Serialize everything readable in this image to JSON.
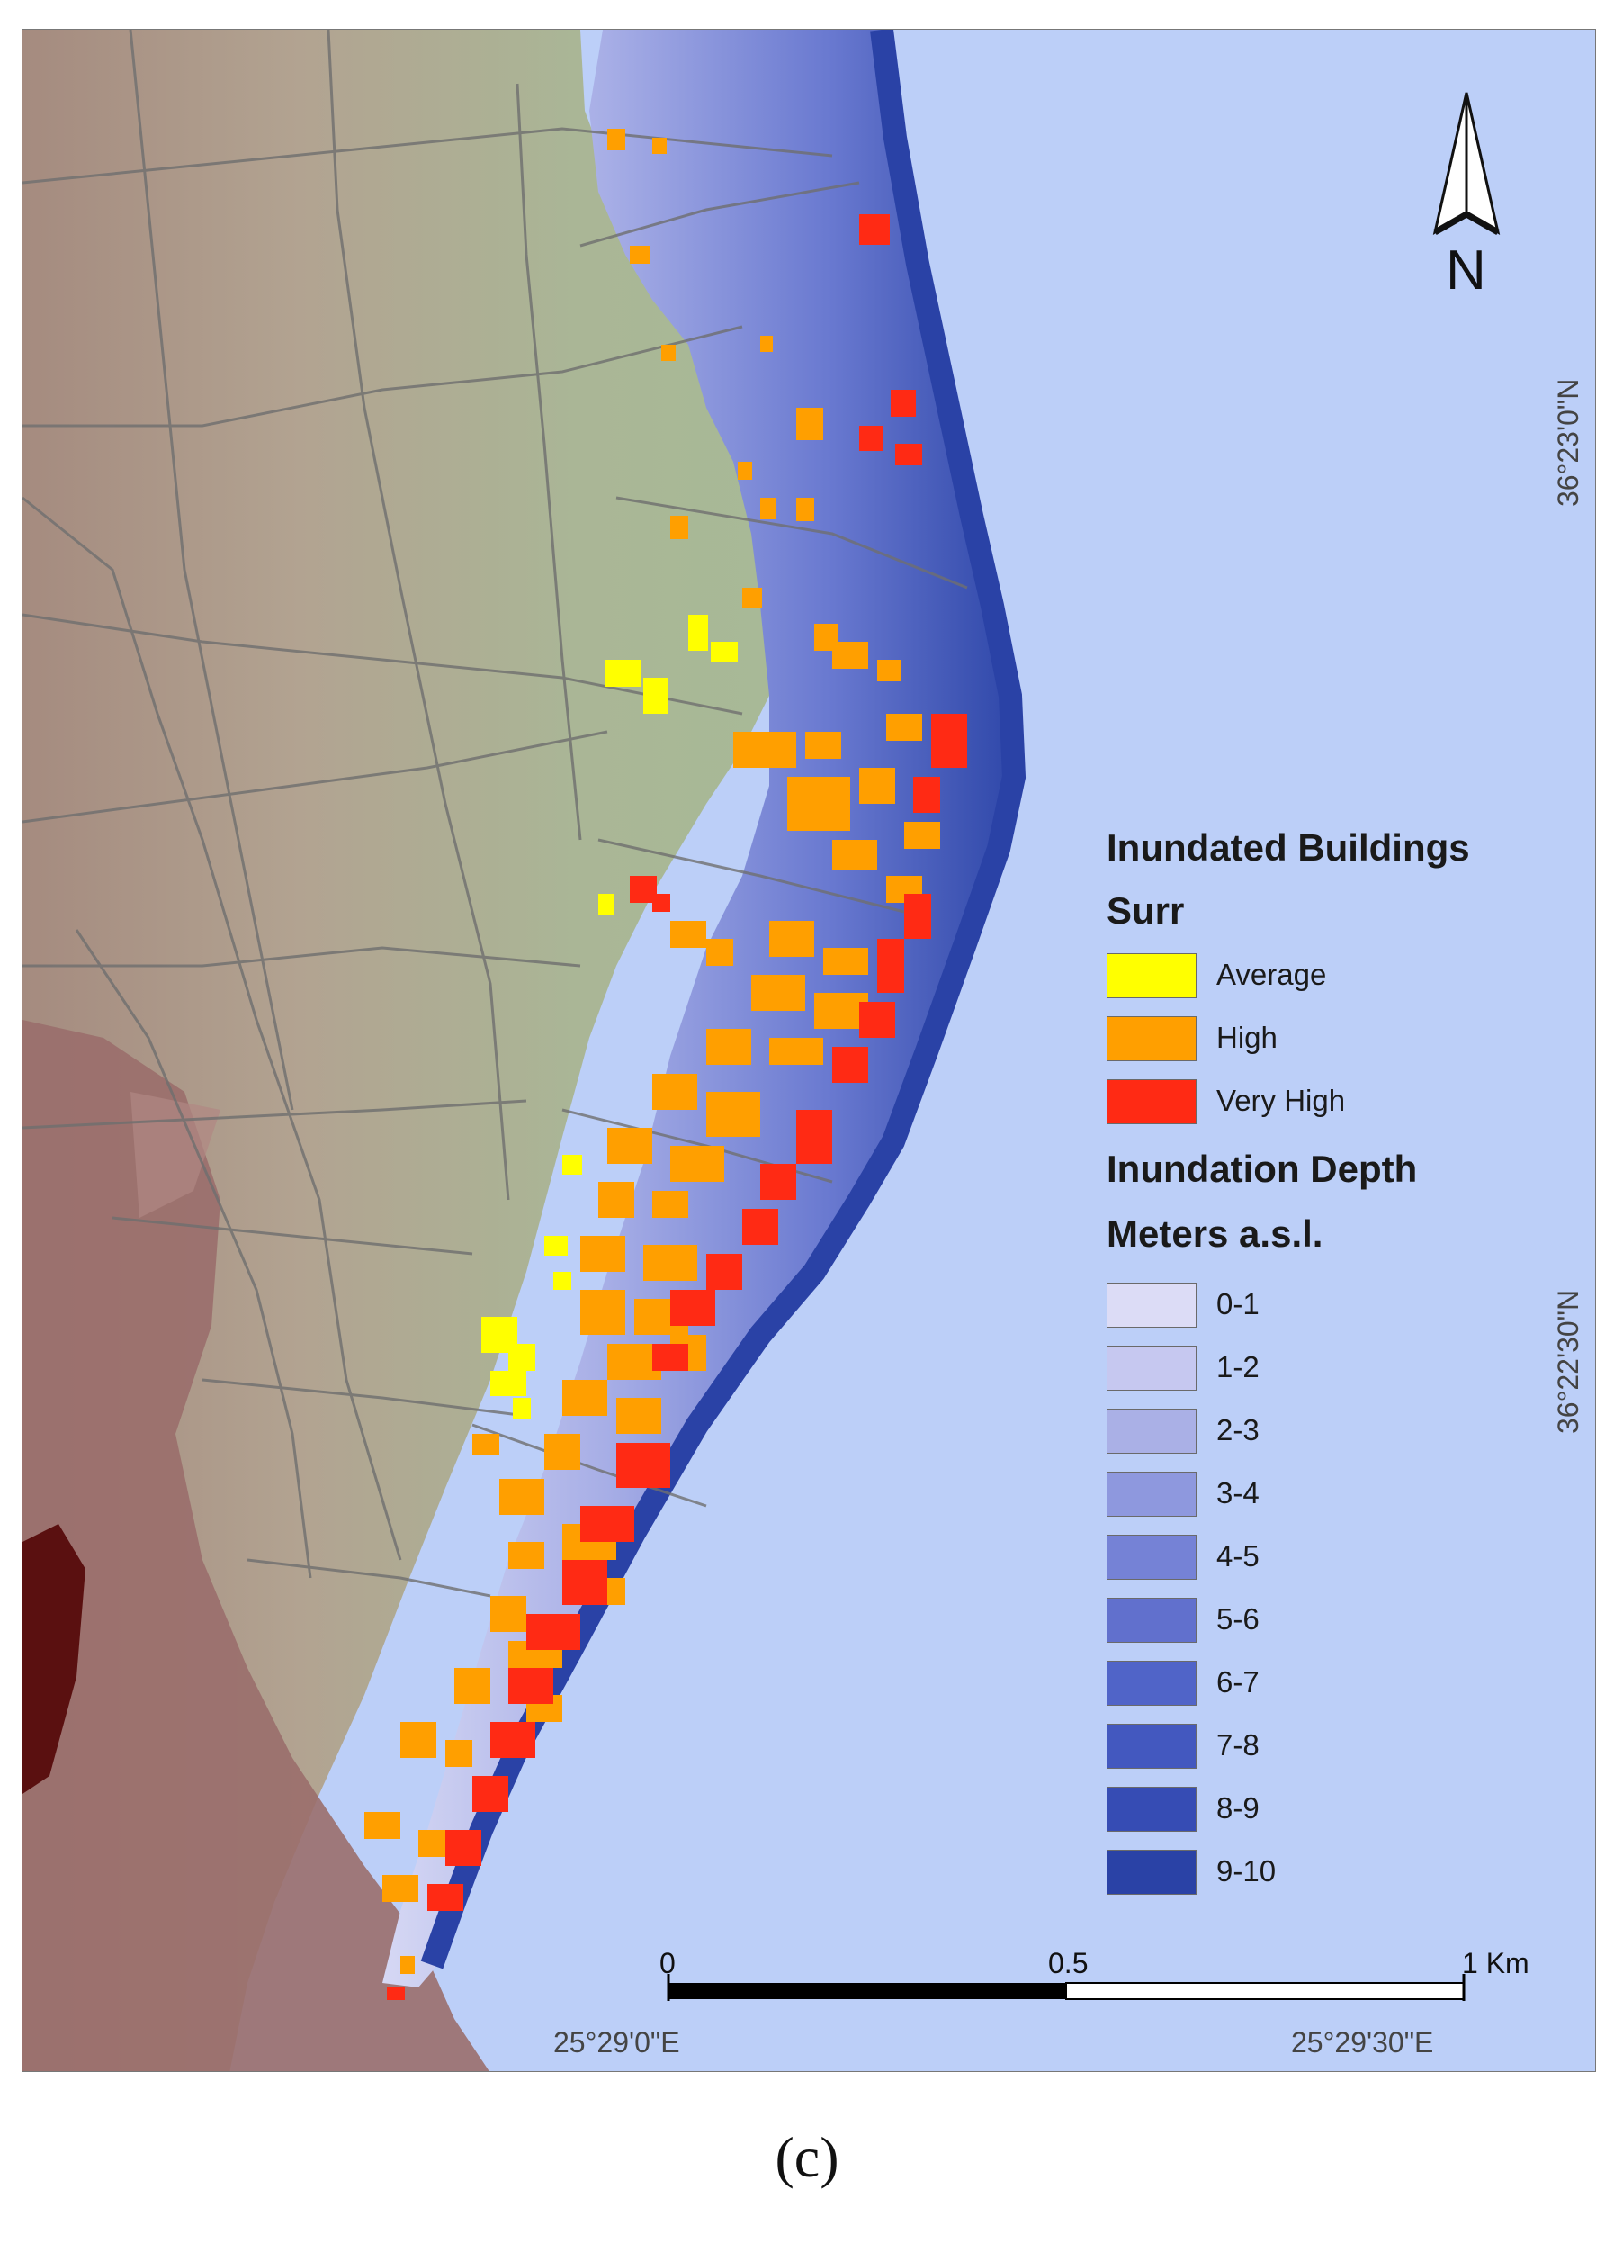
{
  "legend": {
    "title": "Inundated Buildings",
    "subtitle": "Surr",
    "building_classes": [
      {
        "label": "Average",
        "color": "#ffff00"
      },
      {
        "label": "High",
        "color": "#ff9f00"
      },
      {
        "label": "Very High",
        "color": "#ff2a14"
      }
    ],
    "depth_title": "Inundation Depth",
    "depth_units": "Meters a.s.l.",
    "depth_classes": [
      {
        "label": "0-1",
        "color": "#dcdcf6"
      },
      {
        "label": "1-2",
        "color": "#c6c8f0"
      },
      {
        "label": "2-3",
        "color": "#aab0e6"
      },
      {
        "label": "3-4",
        "color": "#8e98de"
      },
      {
        "label": "4-5",
        "color": "#7582d6"
      },
      {
        "label": "5-6",
        "color": "#6170cd"
      },
      {
        "label": "6-7",
        "color": "#5064c8"
      },
      {
        "label": "7-8",
        "color": "#4358bf"
      },
      {
        "label": "8-9",
        "color": "#364cb4"
      },
      {
        "label": "9-10",
        "color": "#2a42a6"
      }
    ]
  },
  "north_arrow": {
    "letter": "N",
    "icon": "north-arrow-icon"
  },
  "scale_bar": {
    "labels": [
      "0",
      "0.5",
      "1 Km"
    ]
  },
  "coordinates": {
    "lon": [
      "25°29'0\"E",
      "25°29'30\"E"
    ],
    "lat": [
      "36°23'0\"N",
      "36°22'30\"N"
    ]
  },
  "map_colors": {
    "sea": "#bccff8",
    "land_low": "#a9b694",
    "land_high": "#9c7e72",
    "land_peak": "#5a1010",
    "roads": "#6f6f6f"
  },
  "caption": "(c)"
}
